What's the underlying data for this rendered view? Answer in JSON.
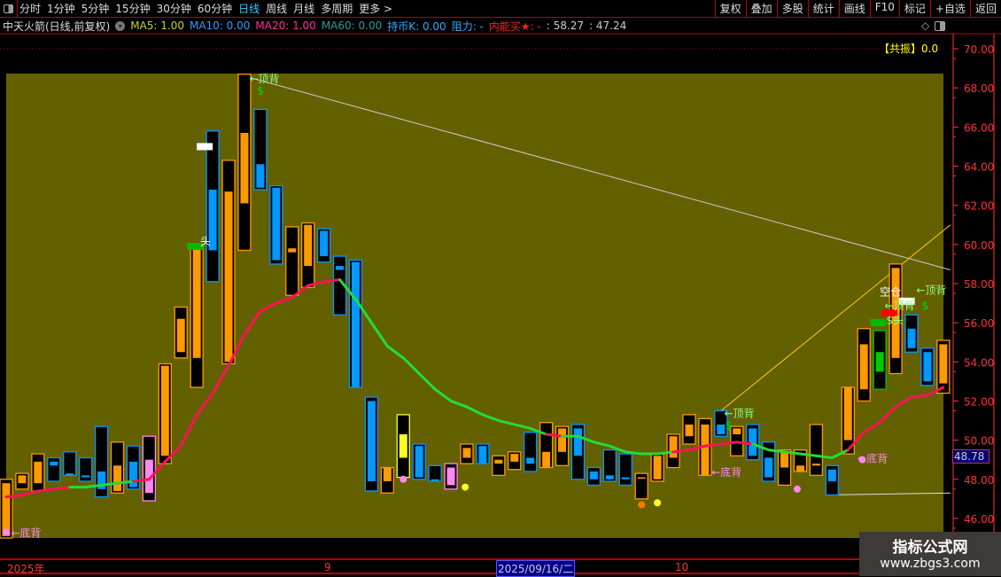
{
  "toolbar": {
    "items": [
      {
        "label": "分时"
      },
      {
        "label": "1分钟"
      },
      {
        "label": "5分钟"
      },
      {
        "label": "15分钟"
      },
      {
        "label": "30分钟"
      },
      {
        "label": "60分钟"
      },
      {
        "label": "日线",
        "active": true
      },
      {
        "label": "周线"
      },
      {
        "label": "月线"
      },
      {
        "label": "多周期"
      },
      {
        "label": "更多 >"
      }
    ],
    "right_buttons": [
      "复权",
      "叠加",
      "多股",
      "统计",
      "画线",
      "F10",
      "标记",
      "+自选",
      "返回"
    ]
  },
  "info": {
    "title": "中天火箭(日线,前复权)",
    "ma5": "MA5: 1.00",
    "ma10": "MA10: 0.00",
    "ma20": "MA20: 1.00",
    "ma60": "MA60: 0.00",
    "chibi": "持币K: 0.00",
    "zuli": "阻力: -",
    "neineng": "内能买★: -",
    "v1": ": 58.27",
    "v2": ": 47.24"
  },
  "gongzhen": "【共振】0.0",
  "current_price": "48.78",
  "colors": {
    "bg_panel": "#636000",
    "orange": "#ff9900",
    "blue": "#0099ff",
    "pink": "#ff88ee",
    "yellow": "#ffff22",
    "green": "#00cc00",
    "ma_up": "#ff1155",
    "ma_down": "#22dd33",
    "axis": "#ff3333"
  },
  "axis": {
    "ymin": 45,
    "ymax": 70,
    "ticks": [
      "70.00",
      "68.00",
      "66.00",
      "64.00",
      "62.00",
      "60.00",
      "58.00",
      "56.00",
      "54.00",
      "52.00",
      "50.00",
      "48.00",
      "46.00"
    ]
  },
  "dates": {
    "year": "2025年",
    "m9": "9",
    "cursor": "2025/09/16/二",
    "m10": "10"
  },
  "watermark": {
    "line1": "指标公式网",
    "line2": "www.zbgs3.com"
  },
  "chart_data": {
    "type": "candlestick-like bars",
    "fields": [
      "box_high",
      "box_low",
      "bar_top",
      "bar_bottom",
      "color"
    ],
    "candles": [
      [
        48.0,
        45.0,
        47.8,
        45.1,
        "orange"
      ],
      [
        48.3,
        47.5,
        48.2,
        47.8,
        "orange"
      ],
      [
        49.3,
        47.4,
        48.9,
        47.8,
        "orange"
      ],
      [
        49.1,
        47.9,
        48.9,
        48.7,
        "blue"
      ],
      [
        49.4,
        48.2,
        48.3,
        48.2,
        "blue"
      ],
      [
        49.1,
        47.9,
        48.2,
        48.1,
        "blue"
      ],
      [
        50.7,
        47.1,
        48.4,
        47.5,
        "blue"
      ],
      [
        49.9,
        47.3,
        48.7,
        47.4,
        "orange"
      ],
      [
        49.7,
        47.5,
        48.9,
        47.6,
        "blue"
      ],
      [
        50.2,
        46.9,
        49.0,
        47.3,
        "pink"
      ],
      [
        53.9,
        48.8,
        53.8,
        49.2,
        "orange"
      ],
      [
        56.8,
        54.2,
        56.2,
        54.5,
        "orange"
      ],
      [
        59.9,
        52.7,
        59.8,
        54.2,
        "orange"
      ],
      [
        65.8,
        58.1,
        62.8,
        59.7,
        "blue"
      ],
      [
        64.3,
        53.9,
        62.7,
        54.0,
        "orange"
      ],
      [
        68.7,
        59.7,
        65.7,
        62.1,
        "orange"
      ],
      [
        66.9,
        62.8,
        64.1,
        62.9,
        "blue"
      ],
      [
        63.0,
        59.0,
        62.9,
        59.2,
        "blue"
      ],
      [
        60.9,
        57.4,
        59.8,
        59.6,
        "orange"
      ],
      [
        61.1,
        57.8,
        61.0,
        58.9,
        "orange"
      ],
      [
        60.8,
        59.1,
        60.7,
        59.4,
        "blue"
      ],
      [
        59.4,
        56.4,
        58.9,
        58.7,
        "blue"
      ],
      [
        59.2,
        52.7,
        59.1,
        52.7,
        "blue"
      ],
      [
        52.2,
        47.4,
        52.0,
        47.9,
        "blue"
      ],
      [
        48.6,
        47.3,
        48.6,
        47.9,
        "orange"
      ],
      [
        51.3,
        48.1,
        50.3,
        49.1,
        "yellow"
      ],
      [
        49.8,
        48.0,
        49.7,
        48.1,
        "blue"
      ],
      [
        48.7,
        47.9,
        48.0,
        47.9,
        "blue"
      ],
      [
        48.8,
        47.5,
        48.6,
        47.7,
        "pink"
      ],
      [
        49.8,
        48.8,
        49.6,
        49.1,
        "orange"
      ],
      [
        49.8,
        48.8,
        49.7,
        48.8,
        "blue"
      ],
      [
        49.2,
        48.2,
        49.0,
        48.8,
        "orange"
      ],
      [
        49.4,
        48.5,
        49.3,
        48.9,
        "orange"
      ],
      [
        50.4,
        48.4,
        49.1,
        48.8,
        "blue"
      ],
      [
        50.9,
        48.6,
        49.4,
        48.6,
        "orange"
      ],
      [
        50.7,
        48.7,
        50.6,
        49.4,
        "orange"
      ],
      [
        50.8,
        48.0,
        50.6,
        49.2,
        "blue"
      ],
      [
        48.6,
        47.7,
        48.4,
        48.0,
        "blue"
      ],
      [
        49.5,
        47.9,
        48.2,
        48.0,
        "blue"
      ],
      [
        49.3,
        47.7,
        48.1,
        48.0,
        "blue"
      ],
      [
        48.3,
        47.0,
        48.1,
        48.05,
        "orange"
      ],
      [
        49.3,
        47.9,
        49.2,
        48.0,
        "orange"
      ],
      [
        50.3,
        48.6,
        50.2,
        49.1,
        "orange"
      ],
      [
        51.3,
        49.8,
        50.8,
        50.2,
        "orange"
      ],
      [
        51.1,
        48.2,
        50.8,
        48.2,
        "orange"
      ],
      [
        51.5,
        50.2,
        50.8,
        50.3,
        "blue"
      ],
      [
        50.7,
        49.2,
        50.6,
        50.3,
        "orange"
      ],
      [
        50.8,
        49.0,
        50.6,
        49.2,
        "blue"
      ],
      [
        49.9,
        47.9,
        49.1,
        48.1,
        "blue"
      ],
      [
        49.5,
        47.7,
        49.4,
        48.6,
        "orange"
      ],
      [
        49.5,
        48.4,
        48.7,
        48.4,
        "orange"
      ],
      [
        50.8,
        48.2,
        48.8,
        48.7,
        "orange"
      ],
      [
        48.7,
        47.2,
        48.5,
        47.9,
        "blue"
      ],
      [
        52.7,
        49.3,
        52.7,
        50.0,
        "orange"
      ],
      [
        55.7,
        52.0,
        54.9,
        52.6,
        "orange"
      ],
      [
        55.6,
        52.6,
        54.5,
        53.5,
        "green"
      ],
      [
        59.0,
        53.4,
        58.8,
        54.2,
        "orange"
      ],
      [
        56.4,
        54.5,
        55.7,
        54.7,
        "blue"
      ],
      [
        54.7,
        52.8,
        54.5,
        53.0,
        "blue"
      ],
      [
        55.1,
        52.4,
        54.9,
        52.9,
        "orange"
      ]
    ],
    "ma_line": [
      47.1,
      47.2,
      47.4,
      47.5,
      47.6,
      47.6,
      47.7,
      47.8,
      47.9,
      48.0,
      48.9,
      49.7,
      51.3,
      52.4,
      53.8,
      55.4,
      56.6,
      57.0,
      57.3,
      57.9,
      58.1,
      58.2,
      57.2,
      56.0,
      54.8,
      54.2,
      53.4,
      52.6,
      52.0,
      51.7,
      51.3,
      51.0,
      50.8,
      50.6,
      50.3,
      50.2,
      50.2,
      49.9,
      49.7,
      49.4,
      49.3,
      49.3,
      49.4,
      49.5,
      49.7,
      49.8,
      49.9,
      49.8,
      49.5,
      49.4,
      49.3,
      49.2,
      49.1,
      49.5,
      50.4,
      50.9,
      51.7,
      52.2,
      52.3,
      52.7
    ],
    "ma_colors": "rrrrrggggrrrrrrrrrrrrrgggggggggggggrgggggggrrrrrggggggrrrrrrr",
    "trend_lines": [
      {
        "from": [
          15,
          68.6
        ],
        "to": [
          59,
          58.7
        ],
        "color": "#cccccc"
      },
      {
        "from": [
          45,
          51.5
        ],
        "to": [
          59,
          61.0
        ],
        "color": "#ffcc00"
      },
      {
        "from": [
          52,
          47.2
        ],
        "to": [
          59,
          47.3
        ],
        "color": "#dddddd"
      }
    ],
    "dots": [
      {
        "i": 0,
        "p": 45.3,
        "color": "pink"
      },
      {
        "i": 25,
        "p": 48.0,
        "color": "pink"
      },
      {
        "i": 28.9,
        "p": 47.6,
        "color": "yellow"
      },
      {
        "i": 40,
        "p": 46.7,
        "color": "#ff7700"
      },
      {
        "i": 41,
        "p": 46.8,
        "color": "yellow"
      },
      {
        "i": 49.8,
        "p": 47.5,
        "color": "pink"
      },
      {
        "i": 53.9,
        "p": 49.0,
        "color": "pink"
      }
    ],
    "labels": [
      {
        "i": 0.3,
        "p": 45.3,
        "text": "←底背",
        "color": "#ff88ee"
      },
      {
        "i": 15.3,
        "p": 68.5,
        "text": "←顶背",
        "color": "#88ff88"
      },
      {
        "i": 15.8,
        "p": 67.9,
        "text": "$",
        "color": "#00dd00"
      },
      {
        "i": 44.4,
        "p": 48.4,
        "text": "←底背",
        "color": "#ff88ee"
      },
      {
        "i": 45.2,
        "p": 51.4,
        "text": "←顶背",
        "color": "#88ff88"
      },
      {
        "i": 45.3,
        "p": 50.8,
        "text": "$",
        "color": "#00dd00"
      },
      {
        "i": 53.6,
        "p": 49.1,
        "text": "←底背",
        "color": "#ff88ee"
      },
      {
        "i": 57.3,
        "p": 57.7,
        "text": "←顶背",
        "color": "#88ff88"
      },
      {
        "i": 55.0,
        "p": 57.3,
        "text": "空仓",
        "color": "#ffffff"
      },
      {
        "i": 55.3,
        "p": 56.9,
        "text": "←顶背",
        "color": "#88ff88"
      },
      {
        "i": 56.3,
        "p": 56.9,
        "text": "$",
        "color": "#00dd00"
      },
      {
        "i": 55.4,
        "p": 56.3,
        "text": "$头",
        "color": "#88ff88"
      },
      {
        "i": 12.2,
        "p": 60.2,
        "text": "头",
        "color": "#ffffff"
      }
    ],
    "markers": [
      {
        "i": 12.5,
        "p": 65.0,
        "color": "#ffffff"
      },
      {
        "i": 55.6,
        "p": 56.5,
        "color": "#ff0000"
      },
      {
        "i": 54.9,
        "p": 56.0,
        "color": "#00bb00"
      },
      {
        "i": 11.9,
        "p": 59.9,
        "color": "#00bb00"
      },
      {
        "i": 56.7,
        "p": 57.1,
        "color": "#ffffff"
      }
    ]
  }
}
